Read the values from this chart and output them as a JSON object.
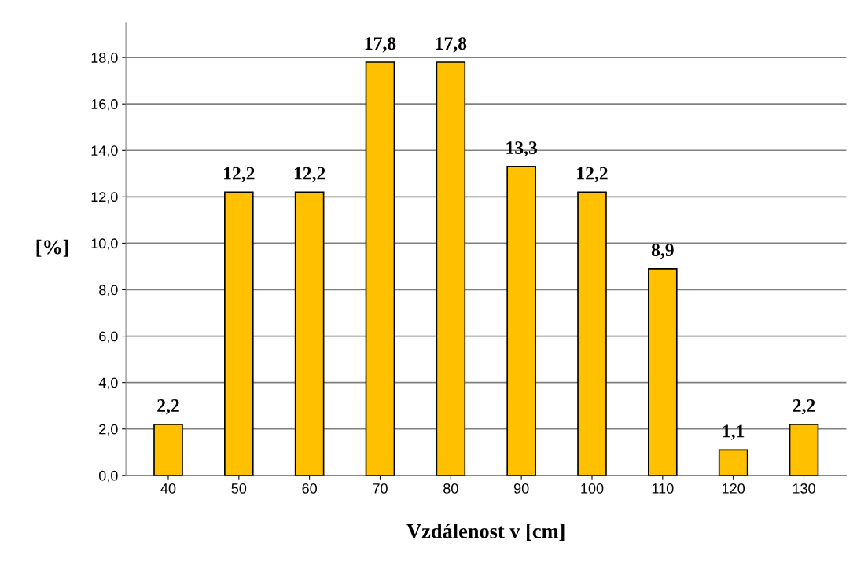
{
  "chart_data": {
    "type": "bar",
    "xlabel": "Vzdálenost v [cm]",
    "ylabel": "[%]",
    "categories": [
      "40",
      "50",
      "60",
      "70",
      "80",
      "90",
      "100",
      "110",
      "120",
      "130"
    ],
    "values": [
      2.2,
      12.2,
      12.2,
      17.8,
      17.8,
      13.3,
      12.2,
      8.9,
      1.1,
      2.2
    ],
    "value_labels": [
      "2,2",
      "12,2",
      "12,2",
      "17,8",
      "17,8",
      "13,3",
      "12,2",
      "8,9",
      "1,1",
      "2,2"
    ],
    "color": "#ffc000",
    "ylim": [
      0,
      19.5
    ],
    "yticks": [
      {
        "value": 0,
        "label": "0,0"
      },
      {
        "value": 2,
        "label": "2,0"
      },
      {
        "value": 4,
        "label": "4,0"
      },
      {
        "value": 6,
        "label": "6,0"
      },
      {
        "value": 8,
        "label": "8,0"
      },
      {
        "value": 10,
        "label": "10,0"
      },
      {
        "value": 12,
        "label": "12,0"
      },
      {
        "value": 14,
        "label": "14,0"
      },
      {
        "value": 16,
        "label": "16,0"
      },
      {
        "value": 18,
        "label": "18,0"
      }
    ],
    "grid": "y"
  }
}
